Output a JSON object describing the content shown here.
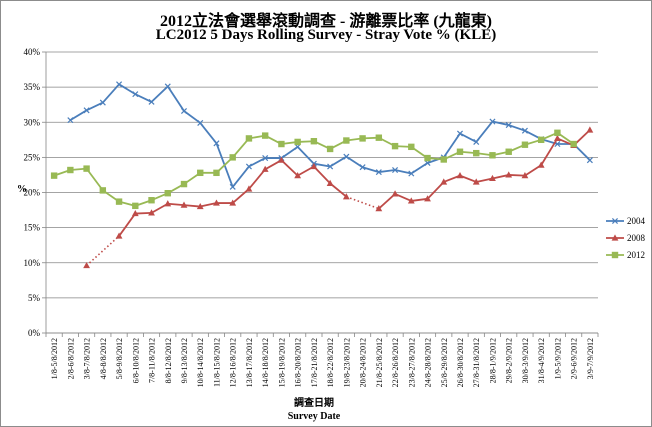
{
  "chart_data": {
    "type": "line",
    "title": "2012立法會選舉滾動調查 - 游離票比率 (九龍東)",
    "subtitle": "LC2012 5 Days Rolling Survey - Stray Vote % (KLE)",
    "xlabel_zh": "調查日期",
    "xlabel": "Survey Date",
    "ylabel": "%",
    "ylim": [
      0,
      40
    ],
    "yticks": [
      "0%",
      "5%",
      "10%",
      "15%",
      "20%",
      "25%",
      "30%",
      "35%",
      "40%"
    ],
    "grid": true,
    "legend_position": "right",
    "categories": [
      "1/8-5/8/2012",
      "2/8-6/8/2012",
      "3/8-7/8/2012",
      "4/8-8/8/2012",
      "5/8-9/8/2012",
      "6/8-10/8/2012",
      "7/8-11/8/2012",
      "8/8-12/8/2012",
      "9/8-13/8/2012",
      "10/8-14/8/2012",
      "11/8-15/8/2012",
      "12/8-16/8/2012",
      "13/8-17/8/2012",
      "14/8-18/8/2012",
      "15/8-19/8/2012",
      "16/8-20/8/2012",
      "17/8-21/8/2012",
      "18/8-22/8/2012",
      "19/8-23/8/2012",
      "20/8-24/8/2012",
      "21/8-25/8/2012",
      "22/8-26/8/2012",
      "23/8-27/8/2012",
      "24/8-28/8/2012",
      "25/8-29/8/2012",
      "26/8-30/8/2012",
      "27/8-31/8/2012",
      "28/8-1/9/2012",
      "29/8-2/9/2012",
      "30/8-3/9/2012",
      "31/8-4/9/2012",
      "1/9-5/9/2012",
      "2/9-6/9/2012",
      "3/9-7/9/2012"
    ],
    "series": [
      {
        "name": "2004",
        "color": "#4a7ebb",
        "marker": "x",
        "values": [
          null,
          30.3,
          31.7,
          32.8,
          35.4,
          34.0,
          32.9,
          35.1,
          31.6,
          29.9,
          27.0,
          20.8,
          23.7,
          24.9,
          24.9,
          26.5,
          24.1,
          23.7,
          25.1,
          23.6,
          22.9,
          23.2,
          22.7,
          24.2,
          25.0,
          28.4,
          27.2,
          30.1,
          29.6,
          28.8,
          27.6,
          26.9,
          26.9,
          24.6
        ]
      },
      {
        "name": "2008",
        "color": "#be4b48",
        "marker": "triangle",
        "values": [
          null,
          null,
          9.6,
          null,
          13.8,
          17.0,
          17.1,
          18.4,
          18.2,
          18.0,
          18.5,
          18.5,
          20.5,
          23.3,
          24.6,
          22.4,
          23.7,
          21.3,
          19.4,
          null,
          17.7,
          19.8,
          18.8,
          19.1,
          21.5,
          22.4,
          21.5,
          22.0,
          22.5,
          22.4,
          23.9,
          27.7,
          26.7,
          28.9
        ]
      },
      {
        "name": "2012",
        "color": "#98b954",
        "marker": "square",
        "values": [
          22.4,
          23.2,
          23.4,
          20.3,
          18.7,
          18.1,
          18.9,
          19.9,
          21.2,
          22.8,
          22.8,
          25.0,
          27.7,
          28.1,
          26.9,
          27.2,
          27.3,
          26.2,
          27.4,
          27.7,
          27.8,
          26.6,
          26.5,
          24.9,
          24.7,
          25.8,
          25.6,
          25.3,
          25.8,
          26.8,
          27.5,
          28.5,
          26.9,
          null
        ]
      }
    ]
  }
}
